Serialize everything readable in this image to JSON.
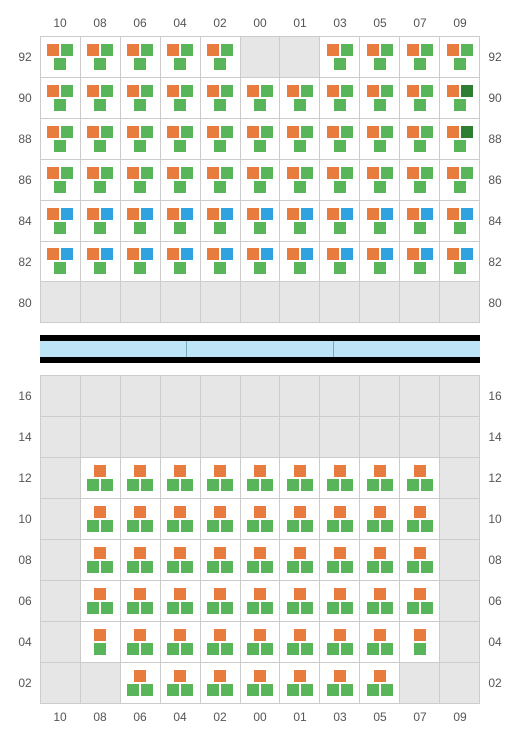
{
  "colors": {
    "orange": "#e87b3e",
    "green": "#59b559",
    "darkgreen": "#2f7d32",
    "blue": "#2ea3e0",
    "empty_bg": "#e6e6e6",
    "grid_border": "#cccccc",
    "label_color": "#555555",
    "divider_bar": "#000000",
    "divider_fill": "#bde4f7"
  },
  "top": {
    "col_labels": [
      "10",
      "08",
      "06",
      "04",
      "02",
      "00",
      "01",
      "03",
      "05",
      "07",
      "09"
    ],
    "row_labels": [
      "92",
      "90",
      "88",
      "86",
      "84",
      "82",
      "80"
    ],
    "rows": [
      [
        [
          "OG",
          "G"
        ],
        [
          "OG",
          "G"
        ],
        [
          "OG",
          "G"
        ],
        [
          "OG",
          "G"
        ],
        [
          "OG",
          "G"
        ],
        [],
        [],
        [
          "OG",
          "G"
        ],
        [
          "OG",
          "G"
        ],
        [
          "OG",
          "G"
        ],
        [
          "OG",
          "G"
        ]
      ],
      [
        [
          "OG",
          "G"
        ],
        [
          "OG",
          "G"
        ],
        [
          "OG",
          "G"
        ],
        [
          "OG",
          "G"
        ],
        [
          "OG",
          "G"
        ],
        [
          "OG",
          "G"
        ],
        [
          "OG",
          "G"
        ],
        [
          "OG",
          "G"
        ],
        [
          "OG",
          "G"
        ],
        [
          "OG",
          "G"
        ],
        [
          "OD",
          "G"
        ]
      ],
      [
        [
          "OG",
          "G"
        ],
        [
          "OG",
          "G"
        ],
        [
          "OG",
          "G"
        ],
        [
          "OG",
          "G"
        ],
        [
          "OG",
          "G"
        ],
        [
          "OG",
          "G"
        ],
        [
          "OG",
          "G"
        ],
        [
          "OG",
          "G"
        ],
        [
          "OG",
          "G"
        ],
        [
          "OG",
          "G"
        ],
        [
          "OD",
          "G"
        ]
      ],
      [
        [
          "OG",
          "G"
        ],
        [
          "OG",
          "G"
        ],
        [
          "OG",
          "G"
        ],
        [
          "OG",
          "G"
        ],
        [
          "OG",
          "G"
        ],
        [
          "OG",
          "G"
        ],
        [
          "OG",
          "G"
        ],
        [
          "OG",
          "G"
        ],
        [
          "OG",
          "G"
        ],
        [
          "OG",
          "G"
        ],
        [
          "OG",
          "G"
        ]
      ],
      [
        [
          "OB",
          "G"
        ],
        [
          "OB",
          "G"
        ],
        [
          "OB",
          "G"
        ],
        [
          "OB",
          "G"
        ],
        [
          "OB",
          "G"
        ],
        [
          "OB",
          "G"
        ],
        [
          "OB",
          "G"
        ],
        [
          "OB",
          "G"
        ],
        [
          "OB",
          "G"
        ],
        [
          "OB",
          "G"
        ],
        [
          "OB",
          "G"
        ]
      ],
      [
        [
          "OB",
          "G"
        ],
        [
          "OB",
          "G"
        ],
        [
          "OB",
          "G"
        ],
        [
          "OB",
          "G"
        ],
        [
          "OB",
          "G"
        ],
        [
          "OB",
          "G"
        ],
        [
          "OB",
          "G"
        ],
        [
          "OB",
          "G"
        ],
        [
          "OB",
          "G"
        ],
        [
          "OB",
          "G"
        ],
        [
          "OB",
          "G"
        ]
      ],
      [
        [],
        [],
        [],
        [],
        [],
        [],
        [],
        [],
        [],
        [],
        []
      ]
    ]
  },
  "bottom": {
    "col_labels": [
      "10",
      "08",
      "06",
      "04",
      "02",
      "00",
      "01",
      "03",
      "05",
      "07",
      "09"
    ],
    "row_labels": [
      "16",
      "14",
      "12",
      "10",
      "08",
      "06",
      "04",
      "02"
    ],
    "rows": [
      [
        [],
        [],
        [],
        [],
        [],
        [],
        [],
        [],
        [],
        [],
        []
      ],
      [
        [],
        [],
        [],
        [],
        [],
        [],
        [],
        [],
        [],
        [],
        []
      ],
      [
        [],
        [
          "O",
          "GG"
        ],
        [
          "O",
          "GG"
        ],
        [
          "O",
          "GG"
        ],
        [
          "O",
          "GG"
        ],
        [
          "O",
          "GG"
        ],
        [
          "O",
          "GG"
        ],
        [
          "O",
          "GG"
        ],
        [
          "O",
          "GG"
        ],
        [
          "O",
          "GG"
        ],
        []
      ],
      [
        [],
        [
          "O",
          "GG"
        ],
        [
          "O",
          "GG"
        ],
        [
          "O",
          "GG"
        ],
        [
          "O",
          "GG"
        ],
        [
          "O",
          "GG"
        ],
        [
          "O",
          "GG"
        ],
        [
          "O",
          "GG"
        ],
        [
          "O",
          "GG"
        ],
        [
          "O",
          "GG"
        ],
        []
      ],
      [
        [],
        [
          "O",
          "GG"
        ],
        [
          "O",
          "GG"
        ],
        [
          "O",
          "GG"
        ],
        [
          "O",
          "GG"
        ],
        [
          "O",
          "GG"
        ],
        [
          "O",
          "GG"
        ],
        [
          "O",
          "GG"
        ],
        [
          "O",
          "GG"
        ],
        [
          "O",
          "GG"
        ],
        []
      ],
      [
        [],
        [
          "O",
          "GG"
        ],
        [
          "O",
          "GG"
        ],
        [
          "O",
          "GG"
        ],
        [
          "O",
          "GG"
        ],
        [
          "O",
          "GG"
        ],
        [
          "O",
          "GG"
        ],
        [
          "O",
          "GG"
        ],
        [
          "O",
          "GG"
        ],
        [
          "O",
          "GG"
        ],
        []
      ],
      [
        [],
        [
          "O",
          "G"
        ],
        [
          "O",
          "GG"
        ],
        [
          "O",
          "GG"
        ],
        [
          "O",
          "GG"
        ],
        [
          "O",
          "GG"
        ],
        [
          "O",
          "GG"
        ],
        [
          "O",
          "GG"
        ],
        [
          "O",
          "GG"
        ],
        [
          "O",
          "G"
        ],
        []
      ],
      [
        [],
        [],
        [
          "O",
          "GG"
        ],
        [
          "O",
          "GG"
        ],
        [
          "O",
          "GG"
        ],
        [
          "O",
          "GG"
        ],
        [
          "O",
          "GG"
        ],
        [
          "O",
          "GG"
        ],
        [
          "O",
          "GG"
        ],
        [],
        []
      ]
    ]
  },
  "divider_segments": 3,
  "chip_map": {
    "O": "orange",
    "G": "green",
    "D": "darkgreen",
    "B": "blue"
  }
}
